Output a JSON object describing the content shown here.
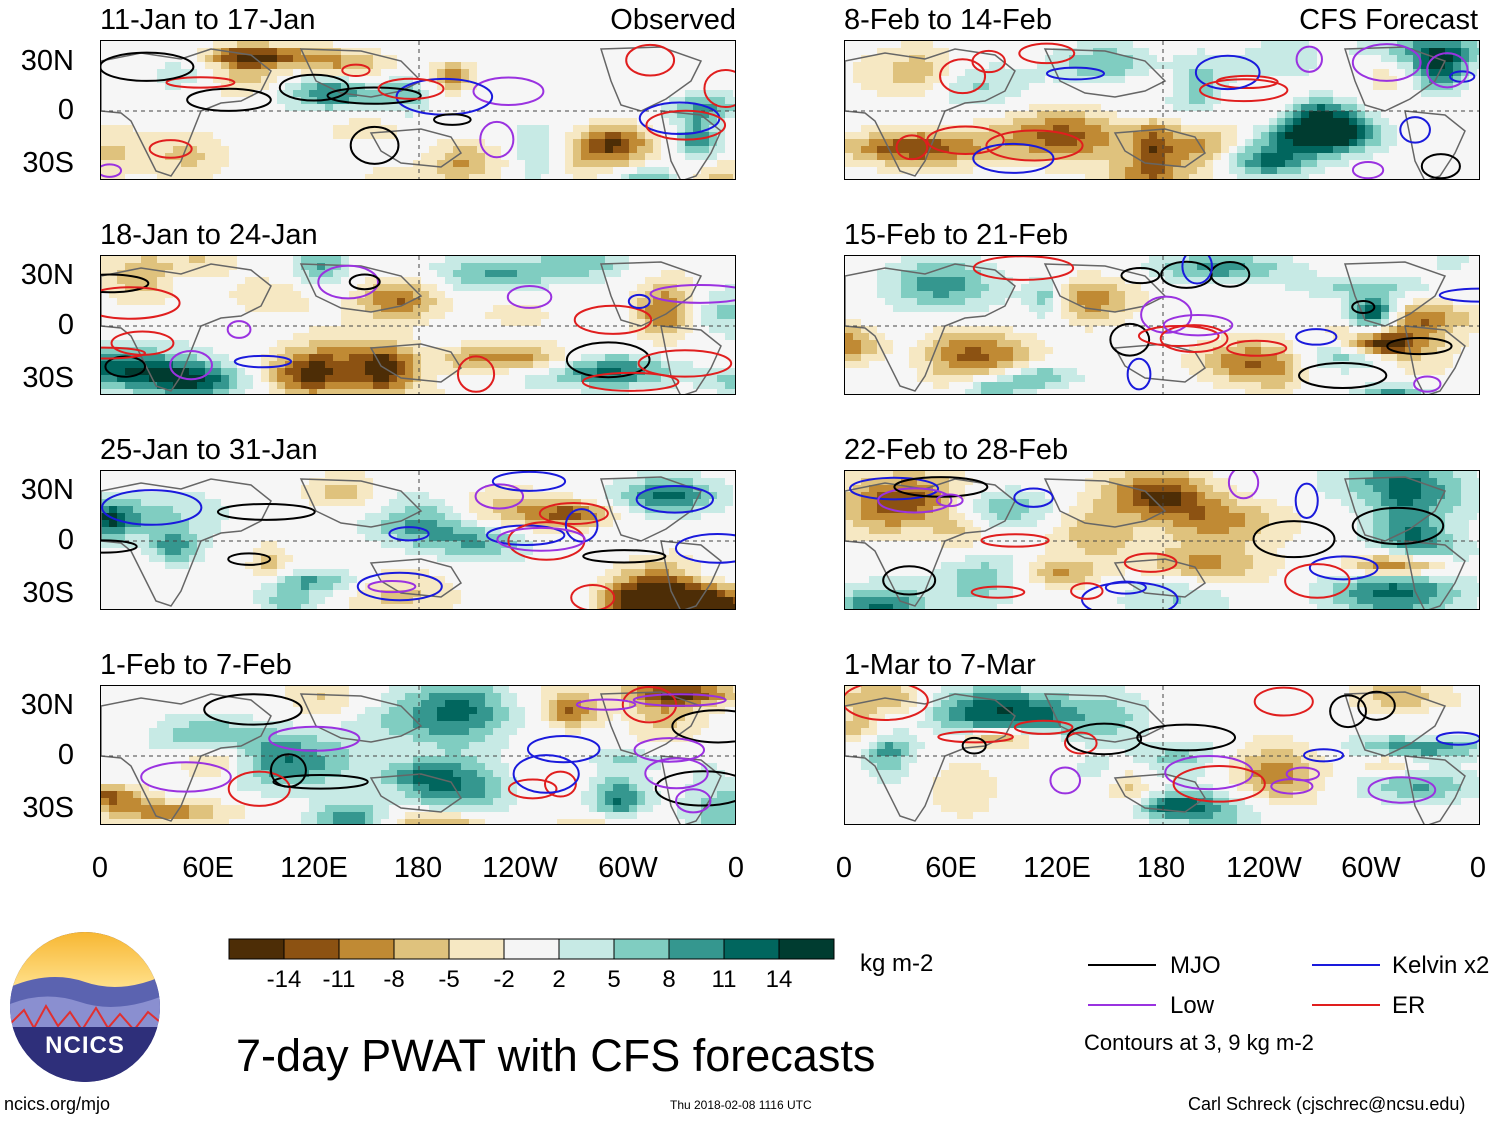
{
  "chart_data": {
    "type": "heatmap",
    "title": "7-day PWAT with CFS forecasts",
    "variable": "7-day precipitable water anomaly",
    "units": "kg m-2",
    "y_tick_labels": [
      "30N",
      "0",
      "30S"
    ],
    "x_tick_labels": [
      "0",
      "60E",
      "120E",
      "180",
      "120W",
      "60W",
      "0"
    ],
    "lat_range": [
      "40S",
      "40N"
    ],
    "lon_range": [
      "0",
      "360"
    ],
    "colorbar": {
      "levels": [
        "-14",
        "-11",
        "-8",
        "-5",
        "-2",
        "2",
        "5",
        "8",
        "11",
        "14"
      ],
      "colors": [
        "#4d2d06",
        "#8c5212",
        "#c08a34",
        "#dfc27d",
        "#f6e8c3",
        "#f5f5f5",
        "#c7eae5",
        "#80cdc1",
        "#35978f",
        "#01665e",
        "#003c30"
      ]
    },
    "panel_tags": {
      "observed": "Observed",
      "forecast": "CFS Forecast"
    },
    "panels": [
      {
        "id": "obs1",
        "period": "11-Jan to 17-Jan",
        "source": "observed"
      },
      {
        "id": "obs2",
        "period": "18-Jan to 24-Jan",
        "source": "observed"
      },
      {
        "id": "obs3",
        "period": "25-Jan to 31-Jan",
        "source": "observed"
      },
      {
        "id": "obs4",
        "period": "1-Feb to 7-Feb",
        "source": "observed"
      },
      {
        "id": "fc1",
        "period": "8-Feb to 14-Feb",
        "source": "forecast"
      },
      {
        "id": "fc2",
        "period": "15-Feb to 21-Feb",
        "source": "forecast"
      },
      {
        "id": "fc3",
        "period": "22-Feb to 28-Feb",
        "source": "forecast"
      },
      {
        "id": "fc4",
        "period": "1-Mar to 7-Mar",
        "source": "forecast"
      }
    ],
    "legend": {
      "entries": [
        {
          "label": "MJO",
          "color": "#000000"
        },
        {
          "label": "Kelvin x2",
          "color": "#1a1adc"
        },
        {
          "label": "Low",
          "color": "#9a32e0"
        },
        {
          "label": "ER",
          "color": "#e01e1e"
        }
      ],
      "note": "Contours at 3, 9 kg m-2"
    }
  },
  "logo": {
    "text": "NCICS"
  },
  "footer": {
    "url": "ncics.org/mjo",
    "timestamp": "Thu 2018-02-08 1116 UTC",
    "credit": "Carl Schreck (cjschrec@ncsu.edu)"
  }
}
